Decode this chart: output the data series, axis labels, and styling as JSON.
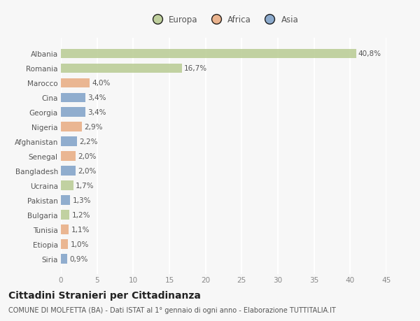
{
  "categories": [
    "Albania",
    "Romania",
    "Marocco",
    "Cina",
    "Georgia",
    "Nigeria",
    "Afghanistan",
    "Senegal",
    "Bangladesh",
    "Ucraina",
    "Pakistan",
    "Bulgaria",
    "Tunisia",
    "Etiopia",
    "Siria"
  ],
  "values": [
    40.8,
    16.7,
    4.0,
    3.4,
    3.4,
    2.9,
    2.2,
    2.0,
    2.0,
    1.7,
    1.3,
    1.2,
    1.1,
    1.0,
    0.9
  ],
  "labels": [
    "40,8%",
    "16,7%",
    "4,0%",
    "3,4%",
    "3,4%",
    "2,9%",
    "2,2%",
    "2,0%",
    "2,0%",
    "1,7%",
    "1,3%",
    "1,2%",
    "1,1%",
    "1,0%",
    "0,9%"
  ],
  "colors": [
    "#b5c98e",
    "#b5c98e",
    "#e8a87c",
    "#7a9dc5",
    "#7a9dc5",
    "#e8a87c",
    "#7a9dc5",
    "#e8a87c",
    "#7a9dc5",
    "#b5c98e",
    "#7a9dc5",
    "#b5c98e",
    "#e8a87c",
    "#e8a87c",
    "#7a9dc5"
  ],
  "legend_labels": [
    "Europa",
    "Africa",
    "Asia"
  ],
  "legend_colors": [
    "#b5c98e",
    "#e8a87c",
    "#7a9dc5"
  ],
  "xlim": [
    0,
    45
  ],
  "xticks": [
    0,
    5,
    10,
    15,
    20,
    25,
    30,
    35,
    40,
    45
  ],
  "title": "Cittadini Stranieri per Cittadinanza",
  "subtitle": "COMUNE DI MOLFETTA (BA) - Dati ISTAT al 1° gennaio di ogni anno - Elaborazione TUTTITALIA.IT",
  "background_color": "#f7f7f7",
  "grid_color": "#ffffff",
  "bar_height": 0.65,
  "label_fontsize": 7.5,
  "tick_fontsize": 7.5,
  "title_fontsize": 10,
  "subtitle_fontsize": 7
}
